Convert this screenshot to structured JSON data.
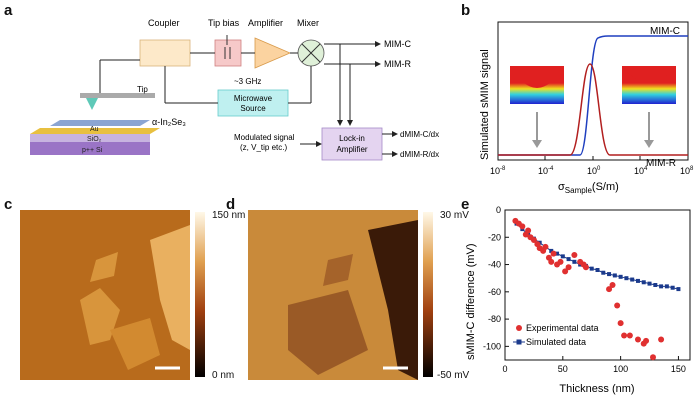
{
  "panels": {
    "a": "a",
    "b": "b",
    "c": "c",
    "d": "d",
    "e": "e"
  },
  "panel_a": {
    "coupler": "Coupler",
    "tip_bias": "Tip bias",
    "amplifier": "Amplifier",
    "mixer": "Mixer",
    "mim_c": "MIM-C",
    "mim_r": "MIM-R",
    "freq": "~3 GHz",
    "microwave_line1": "Microwave",
    "microwave_line2": "Source",
    "tip": "Tip",
    "sample": "α-In₂Se₃",
    "au": "Au",
    "sio2": "SiO₂",
    "psi": "p++ Si",
    "modulated_line1": "Modulated signal",
    "modulated_line2": "(z, V_tip etc.)",
    "lockin_line1": "Lock-in",
    "lockin_line2": "Amplifier",
    "dmimc": "dMIM-C/dx",
    "dmimr": "dMIM-R/dx"
  },
  "chart_b": {
    "ylabel": "Simulated sMIM signal",
    "xlabel": "σ",
    "xlabel_sub": "Sample",
    "xlabel_unit": "(S/m)",
    "xticks": [
      {
        "base": "10",
        "exp": "-8"
      },
      {
        "base": "10",
        "exp": "-4"
      },
      {
        "base": "10",
        "exp": "0"
      },
      {
        "base": "10",
        "exp": "4"
      },
      {
        "base": "10",
        "exp": "8"
      }
    ],
    "legend_c": "MIM-C",
    "legend_r": "MIM-R",
    "colors": {
      "c": "#1f3fbf",
      "r": "#b21f1f"
    }
  },
  "panel_c": {
    "max": "150 nm",
    "min": "0 nm"
  },
  "panel_d": {
    "max": "30 mV",
    "min": "-50 mV"
  },
  "chart_data": {
    "type": "scatter",
    "xlabel": "Thickness (nm)",
    "ylabel": "sMIM-C difference (mV)",
    "xlim": [
      0,
      160
    ],
    "ylim": [
      -110,
      0
    ],
    "xticks": [
      "0",
      "50",
      "100",
      "150"
    ],
    "yticks": [
      "0",
      "-20",
      "-40",
      "-60",
      "-80",
      "-100"
    ],
    "series": [
      {
        "name": "Experimental data",
        "color": "#e03030",
        "marker": "circle",
        "x": [
          9,
          12,
          15,
          18,
          20,
          22,
          25,
          28,
          30,
          33,
          35,
          38,
          40,
          42,
          45,
          48,
          52,
          55,
          60,
          65,
          68,
          70,
          90,
          93,
          97,
          100,
          103,
          108,
          115,
          120,
          122,
          128,
          135
        ],
        "y": [
          -8,
          -10,
          -12,
          -18,
          -15,
          -20,
          -22,
          -25,
          -28,
          -30,
          -27,
          -35,
          -38,
          -32,
          -40,
          -38,
          -45,
          -42,
          -33,
          -38,
          -40,
          -42,
          -58,
          -55,
          -70,
          -83,
          -92,
          -92,
          -95,
          -98,
          -96,
          -108,
          -95
        ]
      },
      {
        "name": "Simulated data",
        "color": "#1b3a8c",
        "marker": "square",
        "x": [
          10,
          15,
          20,
          25,
          30,
          35,
          40,
          45,
          50,
          55,
          60,
          65,
          70,
          75,
          80,
          85,
          90,
          95,
          100,
          105,
          110,
          115,
          120,
          125,
          130,
          135,
          140,
          145,
          150
        ],
        "y": [
          -10,
          -14,
          -18,
          -21,
          -24,
          -27,
          -30,
          -32,
          -34,
          -36,
          -38,
          -40,
          -41,
          -43,
          -44,
          -46,
          -47,
          -48,
          -49,
          -50,
          -51,
          -52,
          -53,
          -54,
          -55,
          -56,
          -56,
          -57,
          -58
        ]
      }
    ]
  }
}
